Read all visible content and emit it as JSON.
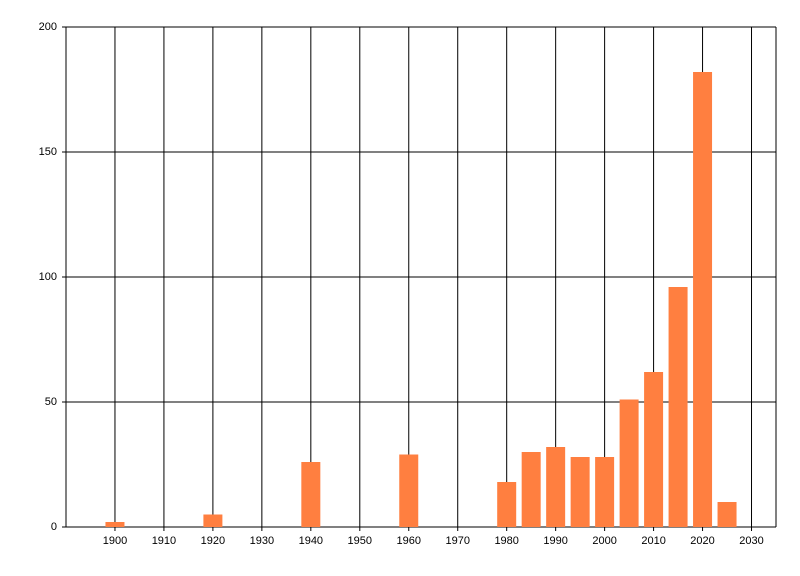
{
  "chart_data": {
    "type": "bar",
    "x": [
      1900,
      1920,
      1940,
      1960,
      1980,
      1985,
      1990,
      1995,
      2000,
      2005,
      2010,
      2015,
      2020,
      2025
    ],
    "values": [
      2,
      5,
      26,
      29,
      18,
      30,
      32,
      28,
      28,
      51,
      62,
      96,
      182,
      10
    ],
    "color": "#ff7f40",
    "xlim": [
      1890,
      2035
    ],
    "xticks": [
      1900,
      1910,
      1920,
      1930,
      1940,
      1950,
      1960,
      1970,
      1980,
      1990,
      2000,
      2010,
      2020,
      2030
    ],
    "ylim": [
      0,
      200
    ],
    "yticks": [
      0,
      50,
      100,
      150,
      200
    ],
    "grid": true
  }
}
